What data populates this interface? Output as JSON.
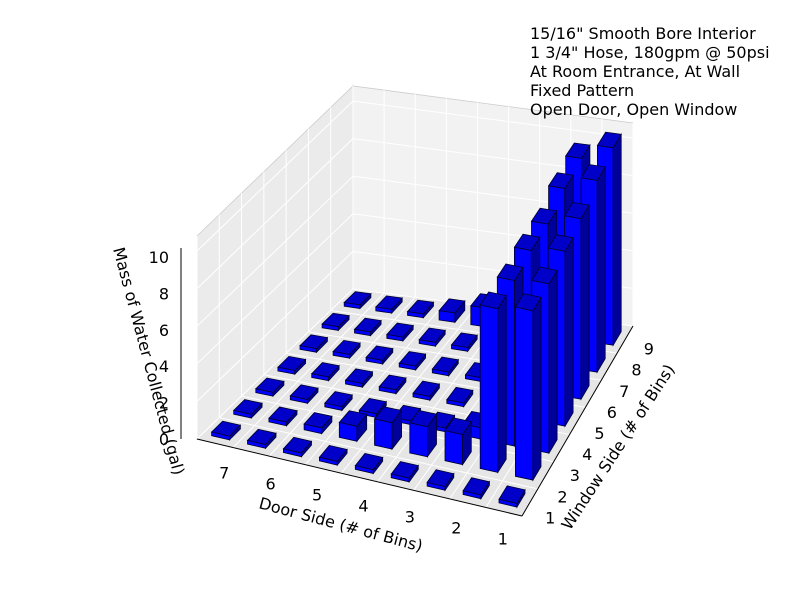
{
  "annotation_lines": [
    "15/16\" Smooth Bore Interior",
    "1 3/4\" Hose, 180gpm @ 50psi",
    "At Room Entrance, At Wall",
    "Fixed Pattern",
    "Open Door, Open Window"
  ],
  "chart_data": {
    "type": "bar3d",
    "title": "",
    "xlabel": "Window Side (# of Bins)",
    "ylabel": "Door Side (# of Bins)",
    "zlabel": "Mass of Water Collected (gal)",
    "window_ticks": [
      "1",
      "2",
      "3",
      "4",
      "5",
      "6",
      "7",
      "8",
      "9"
    ],
    "door_ticks": [
      "1",
      "2",
      "3",
      "4",
      "5",
      "6",
      "7"
    ],
    "z_ticks": [
      "0",
      "2",
      "4",
      "6",
      "8",
      "10"
    ],
    "zlim": [
      0,
      10
    ],
    "grid": true,
    "bar_color": "#0000ff",
    "pane_color": "#f2f2f2",
    "values_by_door": [
      {
        "door": 7,
        "values": [
          0.2,
          0.2,
          0.2,
          0.5,
          1.0,
          2.0,
          2.5,
          9.7,
          10.5
        ]
      },
      {
        "door": 6,
        "values": [
          0.2,
          0.2,
          0.2,
          0.2,
          0.2,
          0.2,
          0.5,
          9.5,
          10.2
        ]
      },
      {
        "door": 5,
        "values": [
          0.2,
          0.2,
          0.2,
          0.2,
          0.2,
          0.2,
          0.4,
          9.0,
          9.6
        ]
      },
      {
        "door": 4,
        "values": [
          0.2,
          0.2,
          0.2,
          0.2,
          0.2,
          0.2,
          0.3,
          9.0,
          9.3
        ]
      },
      {
        "door": 3,
        "values": [
          0.2,
          0.2,
          0.2,
          0.2,
          0.2,
          0.2,
          0.6,
          8.8,
          9.0
        ]
      },
      {
        "door": 2,
        "values": [
          0.2,
          0.2,
          0.3,
          0.8,
          1.4,
          1.6,
          1.6,
          8.7,
          9.0
        ]
      },
      {
        "door": 1,
        "values": [
          0.2,
          0.2,
          0.2,
          0.2,
          0.2,
          0.2,
          0.2,
          0.2,
          0.2
        ]
      }
    ]
  }
}
